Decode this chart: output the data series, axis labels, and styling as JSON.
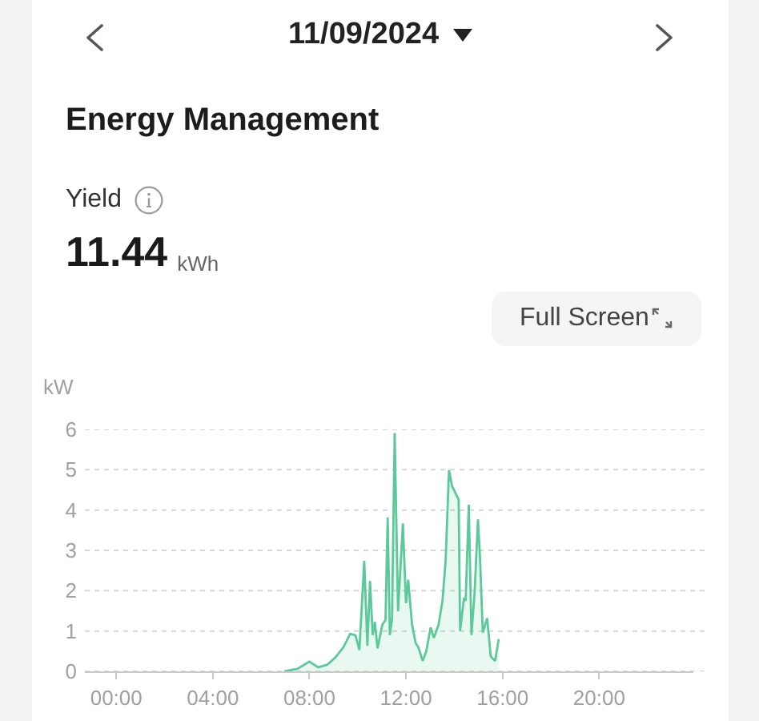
{
  "chart_data": {
    "type": "area",
    "title": "Energy Management",
    "ylabel": "kW",
    "annotations": [
      "11/09/2024",
      "Yield",
      "11.44",
      "kWh",
      "Full Screen"
    ],
    "x": [
      6.96,
      7.5,
      8.0,
      8.36,
      8.73,
      9.07,
      9.4,
      9.69,
      9.91,
      10.07,
      10.27,
      10.4,
      10.51,
      10.62,
      10.71,
      10.82,
      11.02,
      11.15,
      11.24,
      11.33,
      11.42,
      11.53,
      11.67,
      11.87,
      12.0,
      12.09,
      12.25,
      12.4,
      12.51,
      12.69,
      12.84,
      13.02,
      13.15,
      13.35,
      13.51,
      13.64,
      13.78,
      13.91,
      14.18,
      14.24,
      14.4,
      14.47,
      14.6,
      14.71,
      14.84,
      14.98,
      15.07,
      15.18,
      15.36,
      15.51,
      15.69,
      15.84
    ],
    "series": [
      {
        "color": "#5cc99a",
        "values": [
          0,
          0.06,
          0.24,
          0.1,
          0.16,
          0.34,
          0.59,
          0.93,
          0.89,
          0.53,
          2.74,
          0.63,
          2.24,
          0.9,
          1.23,
          0.57,
          1.16,
          1.27,
          3.82,
          0.9,
          1.29,
          5.91,
          1.49,
          3.67,
          1.69,
          2.27,
          1.16,
          0.7,
          0.6,
          0.26,
          0.5,
          1.09,
          0.83,
          1.16,
          1.75,
          2.74,
          4.99,
          4.59,
          4.26,
          1.0,
          1.82,
          1.75,
          4.13,
          0.9,
          1.95,
          3.77,
          2.74,
          0.96,
          1.32,
          0.37,
          0.26,
          0.8
        ]
      }
    ],
    "xlim": [
      -1.3,
      23.9
    ],
    "xticks": [
      {
        "value": 0,
        "label": "00:00"
      },
      {
        "value": 4,
        "label": "04:00"
      },
      {
        "value": 8,
        "label": "08:00"
      },
      {
        "value": 12,
        "label": "12:00"
      },
      {
        "value": 16,
        "label": "16:00"
      },
      {
        "value": 20,
        "label": "20:00"
      }
    ],
    "ylim": [
      0,
      6
    ],
    "yticks": [
      0,
      1,
      2,
      3,
      4,
      5,
      6
    ],
    "grid": "y",
    "line_style": "solid"
  }
}
